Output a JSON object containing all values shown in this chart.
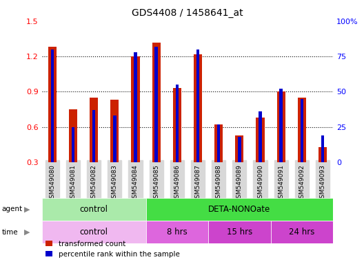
{
  "title": "GDS4408 / 1458641_at",
  "samples": [
    "GSM549080",
    "GSM549081",
    "GSM549082",
    "GSM549083",
    "GSM549084",
    "GSM549085",
    "GSM549086",
    "GSM549087",
    "GSM549088",
    "GSM549089",
    "GSM549090",
    "GSM549091",
    "GSM549092",
    "GSM549093"
  ],
  "red_values": [
    1.28,
    0.75,
    0.85,
    0.83,
    1.2,
    1.32,
    0.93,
    1.22,
    0.62,
    0.53,
    0.68,
    0.9,
    0.85,
    0.43
  ],
  "blue_values_pct": [
    80,
    25,
    37,
    33,
    78,
    82,
    55,
    80,
    27,
    18,
    36,
    52,
    45,
    19
  ],
  "ylim_left": [
    0.3,
    1.5
  ],
  "ylim_right": [
    0,
    100
  ],
  "yticks_left": [
    0.3,
    0.6,
    0.9,
    1.2,
    1.5
  ],
  "yticks_right": [
    0,
    25,
    50,
    75,
    100
  ],
  "ytick_labels_right": [
    "0",
    "25",
    "50",
    "75",
    "100%"
  ],
  "red_color": "#cc2200",
  "blue_color": "#0000cc",
  "agent_control_color": "#aaeaaa",
  "agent_treatment_color": "#44dd44",
  "agent_control_label": "control",
  "agent_treatment_label": "DETA-NONOate",
  "agent_control_count": 5,
  "agent_treatment_count": 9,
  "time_labels": [
    "control",
    "8 hrs",
    "15 hrs",
    "24 hrs"
  ],
  "time_colors": [
    "#f0b8f0",
    "#dd66dd",
    "#cc44cc",
    "#cc44cc"
  ],
  "time_counts": [
    5,
    3,
    3,
    3
  ],
  "legend_red": "transformed count",
  "legend_blue": "percentile rank within the sample",
  "bar_width": 0.4,
  "blue_bar_width": 0.15
}
